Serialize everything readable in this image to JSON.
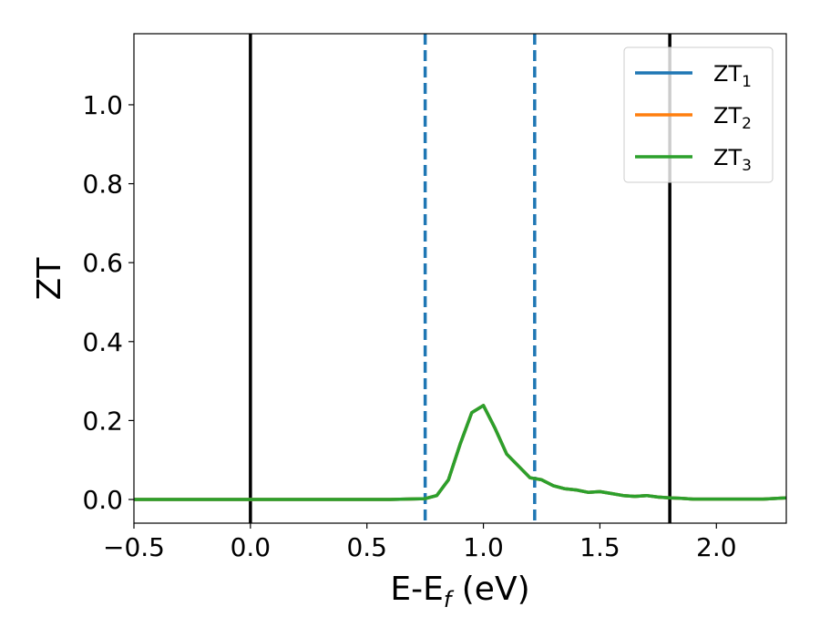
{
  "chart_data": {
    "type": "line",
    "xlabel": "E-E",
    "xlabel_sub": "f",
    "xlabel_unit": " (eV)",
    "ylabel": "ZT",
    "xlim": [
      -0.5,
      2.3
    ],
    "ylim": [
      -0.06,
      1.18
    ],
    "x_ticks": [
      -0.5,
      0.0,
      0.5,
      1.0,
      1.5,
      2.0
    ],
    "x_tick_labels": [
      "−0.5",
      "0.0",
      "0.5",
      "1.0",
      "1.5",
      "2.0"
    ],
    "y_ticks": [
      0.0,
      0.2,
      0.4,
      0.6,
      0.8,
      1.0
    ],
    "y_tick_labels": [
      "0.0",
      "0.2",
      "0.4",
      "0.6",
      "0.8",
      "1.0"
    ],
    "grid": false,
    "legend_position": "top-right",
    "vertical_lines": [
      {
        "x": 0.0,
        "style": "solid",
        "color": "#000000"
      },
      {
        "x": 0.75,
        "style": "dashed",
        "color": "#1f77b4"
      },
      {
        "x": 1.22,
        "style": "dashed",
        "color": "#1f77b4"
      },
      {
        "x": 1.8,
        "style": "solid",
        "color": "#000000"
      }
    ],
    "series": [
      {
        "name": "ZT",
        "sub": "1",
        "color": "#1f77b4",
        "x": [
          -0.5,
          0.6,
          0.75,
          0.8,
          0.85,
          0.9,
          0.95,
          1.0,
          1.05,
          1.1,
          1.15,
          1.2,
          1.25,
          1.3,
          1.35,
          1.4,
          1.45,
          1.5,
          1.55,
          1.6,
          1.65,
          1.7,
          1.75,
          1.8,
          1.85,
          1.9,
          2.0,
          2.1,
          2.2,
          2.3
        ],
        "y": [
          0.0,
          0.0,
          0.002,
          0.01,
          0.05,
          0.14,
          0.22,
          0.238,
          0.18,
          0.115,
          0.085,
          0.055,
          0.05,
          0.035,
          0.027,
          0.024,
          0.018,
          0.02,
          0.015,
          0.01,
          0.008,
          0.01,
          0.006,
          0.004,
          0.003,
          0.001,
          0.001,
          0.001,
          0.001,
          0.004
        ]
      },
      {
        "name": "ZT",
        "sub": "2",
        "color": "#ff7f0e",
        "x": [
          -0.5,
          0.6,
          0.75,
          0.8,
          0.85,
          0.9,
          0.95,
          1.0,
          1.05,
          1.1,
          1.15,
          1.2,
          1.25,
          1.3,
          1.35,
          1.4,
          1.45,
          1.5,
          1.55,
          1.6,
          1.65,
          1.7,
          1.75,
          1.8,
          1.85,
          1.9,
          2.0,
          2.1,
          2.2,
          2.3
        ],
        "y": [
          0.0,
          0.0,
          0.002,
          0.01,
          0.05,
          0.14,
          0.22,
          0.238,
          0.18,
          0.115,
          0.085,
          0.055,
          0.05,
          0.035,
          0.027,
          0.024,
          0.018,
          0.02,
          0.015,
          0.01,
          0.008,
          0.01,
          0.006,
          0.004,
          0.003,
          0.001,
          0.001,
          0.001,
          0.001,
          0.004
        ]
      },
      {
        "name": "ZT",
        "sub": "3",
        "color": "#2ca02c",
        "x": [
          -0.5,
          0.6,
          0.75,
          0.8,
          0.85,
          0.9,
          0.95,
          1.0,
          1.05,
          1.1,
          1.15,
          1.2,
          1.25,
          1.3,
          1.35,
          1.4,
          1.45,
          1.5,
          1.55,
          1.6,
          1.65,
          1.7,
          1.75,
          1.8,
          1.85,
          1.9,
          2.0,
          2.1,
          2.2,
          2.3
        ],
        "y": [
          0.0,
          0.0,
          0.002,
          0.01,
          0.05,
          0.14,
          0.22,
          0.238,
          0.18,
          0.115,
          0.085,
          0.055,
          0.05,
          0.035,
          0.027,
          0.024,
          0.018,
          0.02,
          0.015,
          0.01,
          0.008,
          0.01,
          0.006,
          0.004,
          0.003,
          0.001,
          0.001,
          0.001,
          0.001,
          0.004
        ]
      }
    ]
  }
}
